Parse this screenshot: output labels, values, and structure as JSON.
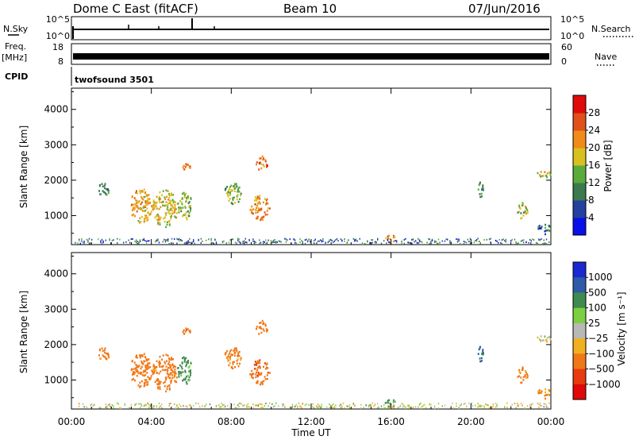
{
  "header": {
    "site": "Dome C East (fitACF)",
    "beam": "Beam 10",
    "date": "07/Jun/2016"
  },
  "status_panels": {
    "nsky_label": "N.Sky",
    "nsearch_label": "N.Search",
    "nsky_ticks": [
      "10^5",
      "10^0"
    ],
    "nsearch_ticks": [
      "10^5",
      "10^0"
    ],
    "freq_label": "Freq.",
    "freq_unit": "[MHz]",
    "freq_ticks": [
      "18",
      "8"
    ],
    "nave_label": "Nave",
    "nave_ticks": [
      "60",
      "0"
    ],
    "cpid_label": "CPID",
    "cpid_value": "twofsound 3501"
  },
  "chart_data": [
    {
      "type": "heatmap",
      "name": "power-panel",
      "ylabel": "Slant Range [km]",
      "y_ticks": [
        "1000",
        "2000",
        "3000",
        "4000"
      ],
      "y_tick_values": [
        1000,
        2000,
        3000,
        4000
      ],
      "ylim": [
        180,
        4600
      ],
      "x_tick_values": [
        0,
        4,
        8,
        12,
        16,
        20,
        24
      ],
      "xlim": [
        0,
        24
      ],
      "colorbar": {
        "label": "Power [dB]",
        "ticks": [
          "4",
          "8",
          "12",
          "16",
          "20",
          "24",
          "28"
        ],
        "tick_values": [
          4,
          8,
          12,
          16,
          20,
          24,
          28
        ],
        "range": [
          0,
          32
        ],
        "colors": [
          "#0a10e8",
          "#2440a0",
          "#3a7a4c",
          "#5aaa3c",
          "#d8c020",
          "#f08a18",
          "#e0501a",
          "#e00a0a"
        ]
      },
      "echo_regions": [
        {
          "t0": 1.3,
          "t1": 1.9,
          "r0": 1550,
          "r1": 1950,
          "level": 10
        },
        {
          "t0": 2.9,
          "t1": 4.0,
          "r0": 800,
          "r1": 1800,
          "level": 20
        },
        {
          "t0": 4.0,
          "t1": 5.3,
          "r0": 700,
          "r1": 1750,
          "level": 18
        },
        {
          "t0": 5.3,
          "t1": 6.0,
          "r0": 900,
          "r1": 1700,
          "level": 14
        },
        {
          "t0": 5.4,
          "t1": 6.0,
          "r0": 2300,
          "r1": 2500,
          "level": 22
        },
        {
          "t0": 7.6,
          "t1": 8.5,
          "r0": 1350,
          "r1": 1950,
          "level": 14
        },
        {
          "t0": 8.9,
          "t1": 9.9,
          "r0": 900,
          "r1": 1600,
          "level": 22
        },
        {
          "t0": 9.2,
          "t1": 9.8,
          "r0": 2300,
          "r1": 2700,
          "level": 24
        },
        {
          "t0": 15.7,
          "t1": 16.2,
          "r0": 250,
          "r1": 500,
          "level": 20
        },
        {
          "t0": 20.3,
          "t1": 20.6,
          "r0": 1500,
          "r1": 2000,
          "level": 10
        },
        {
          "t0": 22.3,
          "t1": 22.8,
          "r0": 900,
          "r1": 1400,
          "level": 16
        },
        {
          "t0": 23.2,
          "t1": 24.0,
          "r0": 2100,
          "r1": 2300,
          "level": 18
        },
        {
          "t0": 23.3,
          "t1": 24.0,
          "r0": 500,
          "r1": 800,
          "level": 8
        }
      ]
    },
    {
      "type": "heatmap",
      "name": "velocity-panel",
      "ylabel": "Slant Range [km]",
      "y_ticks": [
        "1000",
        "2000",
        "3000",
        "4000"
      ],
      "y_tick_values": [
        1000,
        2000,
        3000,
        4000
      ],
      "ylim": [
        180,
        4600
      ],
      "x_ticks": [
        "00:00",
        "04:00",
        "08:00",
        "12:00",
        "16:00",
        "20:00",
        "00:00"
      ],
      "x_tick_values": [
        0,
        4,
        8,
        12,
        16,
        20,
        24
      ],
      "xlim": [
        0,
        24
      ],
      "xlabel": "Time UT",
      "colorbar": {
        "label": "Velocity [m s⁻¹]",
        "ticks": [
          "1000",
          "500",
          "100",
          "25",
          "−25",
          "−100",
          "−500",
          "−1000"
        ],
        "tick_values": [
          1000,
          500,
          100,
          25,
          -25,
          -100,
          -500,
          -1000
        ],
        "colors": [
          "#1a2ad0",
          "#2e5aa8",
          "#3f8a50",
          "#7ccf40",
          "#b8b8b8",
          "#f0b020",
          "#f07818",
          "#e83a0e",
          "#e00808"
        ]
      },
      "echo_regions": [
        {
          "t0": 1.3,
          "t1": 1.9,
          "r0": 1550,
          "r1": 1950,
          "level": -150
        },
        {
          "t0": 2.9,
          "t1": 4.0,
          "r0": 800,
          "r1": 1800,
          "level": -300
        },
        {
          "t0": 4.0,
          "t1": 5.3,
          "r0": 700,
          "r1": 1750,
          "level": -200
        },
        {
          "t0": 5.3,
          "t1": 6.0,
          "r0": 900,
          "r1": 1700,
          "level": 150
        },
        {
          "t0": 5.4,
          "t1": 6.0,
          "r0": 2300,
          "r1": 2500,
          "level": -400
        },
        {
          "t0": 7.6,
          "t1": 8.5,
          "r0": 1350,
          "r1": 1950,
          "level": -200
        },
        {
          "t0": 8.9,
          "t1": 9.9,
          "r0": 900,
          "r1": 1600,
          "level": -400
        },
        {
          "t0": 9.2,
          "t1": 9.8,
          "r0": 2300,
          "r1": 2700,
          "level": -300
        },
        {
          "t0": 15.7,
          "t1": 16.2,
          "r0": 250,
          "r1": 500,
          "level": 120
        },
        {
          "t0": 20.3,
          "t1": 20.6,
          "r0": 1500,
          "r1": 2000,
          "level": 600
        },
        {
          "t0": 22.3,
          "t1": 22.8,
          "r0": 900,
          "r1": 1400,
          "level": -200
        },
        {
          "t0": 23.2,
          "t1": 24.0,
          "r0": 2100,
          "r1": 2300,
          "level": 0
        },
        {
          "t0": 23.3,
          "t1": 24.0,
          "r0": 500,
          "r1": 800,
          "level": -120
        }
      ]
    }
  ]
}
